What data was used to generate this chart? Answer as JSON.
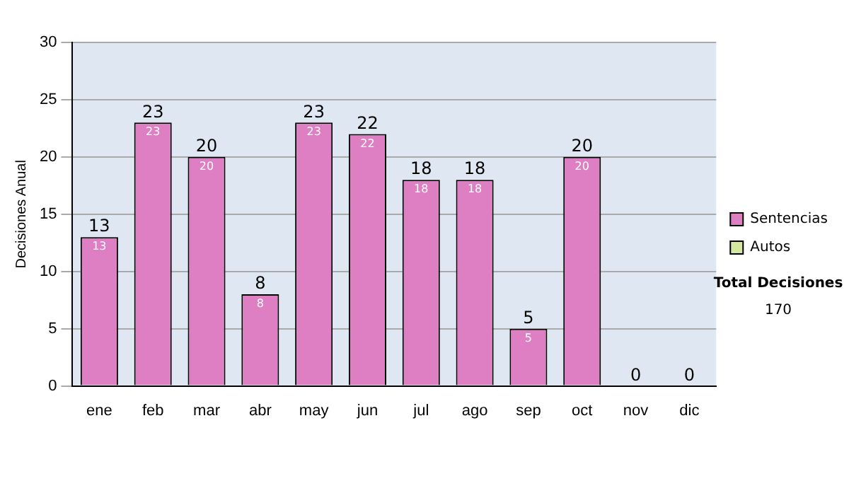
{
  "chart_data": {
    "type": "bar",
    "ylabel": "Decisiones Anual",
    "categories": [
      "ene",
      "feb",
      "mar",
      "abr",
      "may",
      "jun",
      "jul",
      "ago",
      "sep",
      "oct",
      "nov",
      "dic"
    ],
    "stacked": true,
    "series": [
      {
        "name": "Sentencias",
        "color": "#dd7fc2",
        "values": [
          13,
          23,
          20,
          8,
          23,
          22,
          18,
          18,
          5,
          20,
          0,
          0
        ],
        "value_labels": [
          "13",
          "23",
          "20",
          "8",
          "23",
          "22",
          "18",
          "18",
          "5",
          "20",
          null,
          null
        ]
      },
      {
        "name": "Autos",
        "color": "#d6e8a0",
        "values": [
          0,
          0,
          0,
          0,
          0,
          0,
          0,
          0,
          0,
          0,
          0,
          0
        ]
      }
    ],
    "totals": [
      "13",
      "23",
      "20",
      "8",
      "23",
      "22",
      "18",
      "18",
      "5",
      "20",
      "0",
      "0"
    ],
    "ylim": [
      0,
      30
    ],
    "yticks": [
      0,
      5,
      10,
      15,
      20,
      25,
      30
    ],
    "grid": "y",
    "legend": "right",
    "annotations": [
      "Total Decisiones",
      "170"
    ]
  }
}
